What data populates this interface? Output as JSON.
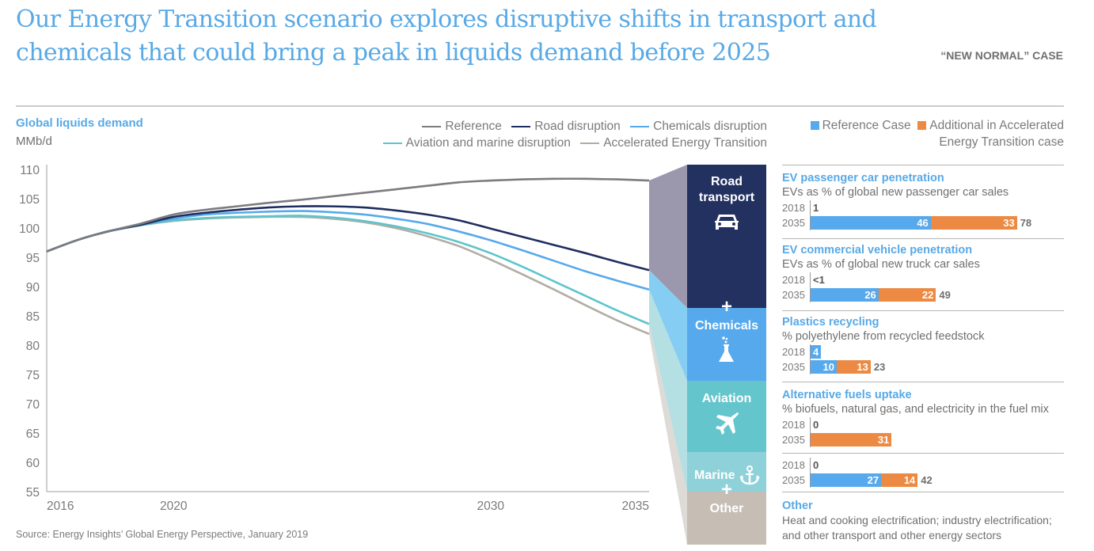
{
  "header": {
    "title_line1": "Our Energy Transition scenario explores disruptive shifts in transport and",
    "title_line2": "chemicals that could bring a peak in liquids demand before 2025",
    "case_label": "“NEW NORMAL” CASE"
  },
  "source": "Source: Energy Insights’ Global Energy Perspective, January 2019",
  "chart_data": {
    "type": "line",
    "title": "Global liquids demand",
    "ylabel": "MMb/d",
    "xlabel": "",
    "x": [
      2016,
      2017,
      2018,
      2019,
      2020,
      2021,
      2022,
      2023,
      2024,
      2025,
      2026,
      2027,
      2028,
      2029,
      2030,
      2031,
      2032,
      2033,
      2034,
      2035
    ],
    "xlim": [
      2016,
      2035
    ],
    "ylim": [
      55,
      110
    ],
    "x_ticks": [
      "2016",
      "2020",
      "2030",
      "2035"
    ],
    "x_tick_values": [
      2016,
      2020,
      2030,
      2035
    ],
    "y_ticks": [
      "110",
      "105",
      "100",
      "95",
      "90",
      "85",
      "80",
      "75",
      "70",
      "65",
      "60",
      "55"
    ],
    "y_tick_values": [
      110,
      105,
      100,
      95,
      90,
      85,
      80,
      75,
      70,
      65,
      60,
      55
    ],
    "grid": false,
    "legend_position": "top-right",
    "series": [
      {
        "name": "Reference",
        "color": "#7b7b80",
        "values": [
          96.0,
          98.0,
          99.5,
          100.8,
          102.3,
          103.1,
          103.7,
          104.3,
          104.8,
          105.4,
          106.0,
          106.6,
          107.2,
          107.8,
          108.1,
          108.3,
          108.4,
          108.4,
          108.3,
          108.1
        ]
      },
      {
        "name": "Road disruption",
        "color": "#1f2d5e",
        "values": [
          96.0,
          98.0,
          99.5,
          100.6,
          101.9,
          102.6,
          103.1,
          103.5,
          103.7,
          103.7,
          103.5,
          103.0,
          102.3,
          101.3,
          99.9,
          98.5,
          97.1,
          95.7,
          94.2,
          92.8
        ]
      },
      {
        "name": "Chemicals disruption",
        "color": "#56a9ec",
        "values": [
          96.0,
          98.0,
          99.5,
          100.6,
          101.6,
          102.3,
          102.6,
          102.8,
          102.9,
          102.7,
          102.3,
          101.6,
          100.7,
          99.4,
          97.9,
          96.2,
          94.4,
          92.6,
          91.0,
          89.5
        ]
      },
      {
        "name": "Aviation and marine disruption",
        "color": "#5cc5cc",
        "values": [
          96.0,
          98.0,
          99.5,
          100.5,
          101.3,
          101.7,
          101.9,
          102.0,
          102.1,
          101.8,
          101.2,
          100.3,
          99.1,
          97.6,
          95.7,
          93.4,
          90.9,
          88.4,
          85.9,
          83.6
        ]
      },
      {
        "name": "Accelerated Energy Transition",
        "color": "#b2aca5",
        "values": [
          96.0,
          98.0,
          99.5,
          100.5,
          101.2,
          101.6,
          101.8,
          101.9,
          101.9,
          101.6,
          101.0,
          100.0,
          98.6,
          96.9,
          94.6,
          92.1,
          89.5,
          86.8,
          84.2,
          81.9
        ]
      }
    ]
  },
  "line_legend": {
    "row1": [
      "Reference",
      "Road disruption",
      "Chemicals disruption"
    ],
    "row1_colors": [
      "#7b7b80",
      "#1f2d5e",
      "#56a9ec"
    ],
    "row2": [
      "Aviation and marine disruption",
      "Accelerated Energy Transition"
    ],
    "row2_colors": [
      "#5cc5cc",
      "#b2aca5"
    ]
  },
  "bar_legend": {
    "reference": "Reference Case",
    "additional_line1": "Additional in Accelerated",
    "additional_line2": "Energy Transition case",
    "reference_color": "#56a9ec",
    "additional_color": "#ec8a43"
  },
  "stack": {
    "blocks": [
      {
        "label_line1": "Road",
        "label_line2": "transport",
        "icon": "car-icon",
        "color": "#233160"
      },
      {
        "label_line1": "Chemicals",
        "icon": "flask-icon",
        "color": "#56a9ec"
      },
      {
        "label_line1": "Aviation",
        "icon": "airplane-icon",
        "color": "#65c5cc"
      },
      {
        "label_line1": "Marine",
        "icon": "anchor-icon",
        "color": "#8fd1d8"
      },
      {
        "label_line1": "Other",
        "color": "#c6beb5"
      }
    ],
    "plus": "+"
  },
  "panels": [
    {
      "title": "EV passenger car penetration",
      "subtitle": "EVs as % of global new passenger car sales",
      "rows": [
        {
          "year": "2018",
          "label": "1",
          "reference": 1,
          "additional": 0
        },
        {
          "year": "2035",
          "reference": 46,
          "additional": 33,
          "reference_label": "46",
          "additional_label": "33",
          "total": "78"
        }
      ]
    },
    {
      "title": "EV commercial vehicle penetration",
      "subtitle": "EVs as % of global new truck car sales",
      "rows": [
        {
          "year": "2018",
          "label": "<1",
          "reference": 0.5,
          "additional": 0
        },
        {
          "year": "2035",
          "reference": 26,
          "additional": 22,
          "reference_label": "26",
          "additional_label": "22",
          "total": "49"
        }
      ]
    },
    {
      "title": "Plastics recycling",
      "subtitle": "% polyethylene from recycled feedstock",
      "rows": [
        {
          "year": "2018",
          "label": "4",
          "reference": 4,
          "additional": 0
        },
        {
          "year": "2035",
          "reference": 10,
          "additional": 13,
          "reference_label": "10",
          "additional_label": "13",
          "total": "23"
        }
      ]
    },
    {
      "title": "Alternative fuels uptake",
      "subtitle": "% biofuels, natural gas, and electricity in the fuel mix",
      "rows": [
        {
          "year": "2018",
          "label": "0",
          "reference": 0,
          "additional": 0
        },
        {
          "year": "2035",
          "reference": 0,
          "additional": 31,
          "additional_label": "31"
        }
      ]
    },
    {
      "title": "",
      "subtitle": "",
      "rows": [
        {
          "year": "2018",
          "label": "0",
          "reference": 0,
          "additional": 0
        },
        {
          "year": "2035",
          "reference": 27,
          "additional": 14,
          "reference_label": "27",
          "additional_label": "14",
          "total": "42"
        }
      ]
    }
  ],
  "other": {
    "title": "Other",
    "text_line1": "Heat and cooking electrification; industry electrification;",
    "text_line2": "and other transport and other energy sectors"
  }
}
